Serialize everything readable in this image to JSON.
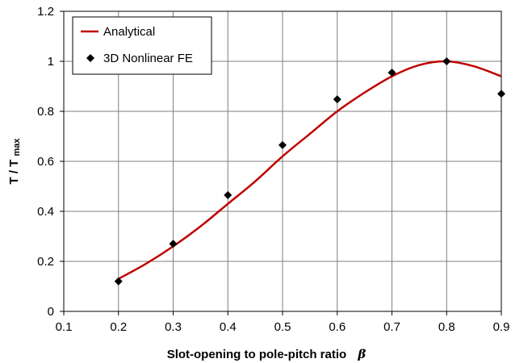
{
  "chart_data": {
    "type": "line",
    "xlabel": "Slot-opening to pole-pitch ratio",
    "xlabel_symbol": "β",
    "ylabel": "T / T",
    "ylabel_sub": "max",
    "xlim": [
      0.1,
      0.9
    ],
    "ylim": [
      0,
      1.2
    ],
    "x_ticks": [
      "0.1",
      "0.2",
      "0.3",
      "0.4",
      "0.5",
      "0.6",
      "0.7",
      "0.8",
      "0.9"
    ],
    "y_ticks": [
      "0",
      "0.2",
      "0.4",
      "0.6",
      "0.8",
      "1",
      "1.2"
    ],
    "grid": true,
    "legend_position": "top-left",
    "series": [
      {
        "name": "Analytical",
        "style": "line",
        "color": "#c00000",
        "x": [
          0.2,
          0.25,
          0.3,
          0.35,
          0.4,
          0.45,
          0.5,
          0.55,
          0.6,
          0.65,
          0.7,
          0.75,
          0.8,
          0.85,
          0.9
        ],
        "y": [
          0.13,
          0.19,
          0.26,
          0.34,
          0.43,
          0.52,
          0.62,
          0.71,
          0.8,
          0.875,
          0.94,
          0.985,
          1.0,
          0.98,
          0.94
        ]
      },
      {
        "name": "3D Nonlinear FE",
        "style": "marker-diamond",
        "color": "#000000",
        "x": [
          0.2,
          0.3,
          0.4,
          0.5,
          0.6,
          0.7,
          0.8,
          0.9
        ],
        "y": [
          0.12,
          0.27,
          0.465,
          0.665,
          0.848,
          0.955,
          1.0,
          0.87
        ]
      }
    ]
  }
}
